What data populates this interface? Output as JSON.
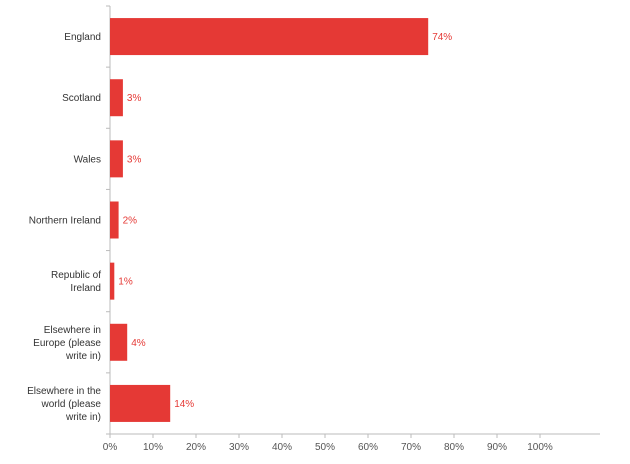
{
  "chart_data": {
    "type": "bar",
    "orientation": "horizontal",
    "categories": [
      "England",
      "Scotland",
      "Wales",
      "Northern Ireland",
      "Republic of Ireland",
      "Elsewhere in Europe (please write in)",
      "Elsewhere in the world (please write in)"
    ],
    "category_lines": [
      [
        "England"
      ],
      [
        "Scotland"
      ],
      [
        "Wales"
      ],
      [
        "Northern Ireland"
      ],
      [
        "Republic of",
        "Ireland"
      ],
      [
        "Elsewhere in",
        "Europe (please",
        "write in)"
      ],
      [
        "Elsewhere in the",
        "world (please",
        "write in)"
      ]
    ],
    "values": [
      74,
      3,
      3,
      2,
      1,
      4,
      14
    ],
    "data_labels": [
      "74%",
      "3%",
      "3%",
      "2%",
      "1%",
      "4%",
      "14%"
    ],
    "xlim": [
      0,
      100
    ],
    "x_ticks": [
      0,
      10,
      20,
      30,
      40,
      50,
      60,
      70,
      80,
      90,
      100
    ],
    "x_tick_labels": [
      "0%",
      "10%",
      "20%",
      "30%",
      "40%",
      "50%",
      "60%",
      "70%",
      "80%",
      "90%",
      "100%"
    ],
    "grid": false,
    "colors": {
      "bar": "#e53935",
      "label": "#e53935",
      "axis": "#bbbbbb"
    }
  }
}
